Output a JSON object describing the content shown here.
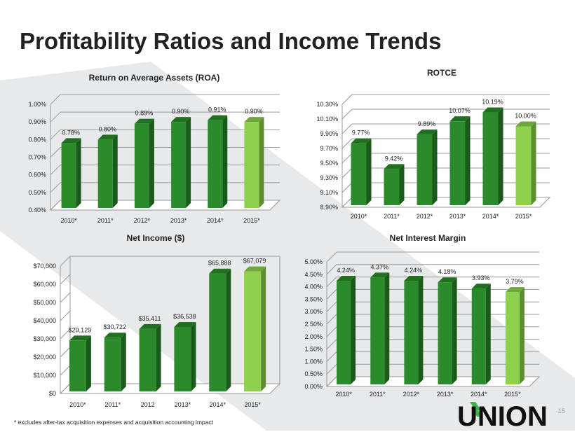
{
  "page": {
    "title": "Profitability Ratios and Income Trends",
    "footnote": "* excludes after-tax acquisition expenses and acquisition accounting impact",
    "page_number": "15",
    "logo_text": "UNION"
  },
  "colors": {
    "bar": "#2b8a2b",
    "bar_side": "#1a5a1a",
    "bar_top": "#207020",
    "highlight": "#8fd14f",
    "highlight_side": "#5e8f2f",
    "highlight_top": "#6fa83a",
    "grid": "#999999",
    "band": "#e8e9eb"
  },
  "chart_data": [
    {
      "type": "bar",
      "title": "Return on Average Assets (ROA)",
      "categories": [
        "2010*",
        "2011*",
        "2012*",
        "2013*",
        "2014*",
        "2015*"
      ],
      "values": [
        0.78,
        0.8,
        0.89,
        0.9,
        0.91,
        0.9
      ],
      "labels": [
        "0.78%",
        "0.80%",
        "0.89%",
        "0.90%",
        "0.91%",
        "0.90%"
      ],
      "yticks": [
        "0.40%",
        "0.50%",
        "0.60%",
        "0.70%",
        "0.80%",
        "0.90%",
        "1.00%"
      ],
      "ylim": [
        0.4,
        1.0
      ],
      "grid": true,
      "highlight_index": 5
    },
    {
      "type": "bar",
      "title": "ROTCE",
      "categories": [
        "2010*",
        "2011*",
        "2012*",
        "2013*",
        "2014*",
        "2015*"
      ],
      "values": [
        9.77,
        9.42,
        9.89,
        10.07,
        10.19,
        10.0
      ],
      "labels": [
        "9.77%",
        "9.42%",
        "9.89%",
        "10.07%",
        "10.19%",
        "10.00%"
      ],
      "yticks": [
        "8.90%",
        "9.10%",
        "9.30%",
        "9.50%",
        "9.70%",
        "9.90%",
        "10.10%",
        "10.30%"
      ],
      "ylim": [
        8.9,
        10.3
      ],
      "grid": true,
      "highlight_index": 5
    },
    {
      "type": "bar",
      "title": "Net Income ($)",
      "categories": [
        "2010*",
        "2011*",
        "2012",
        "2013*",
        "2014*",
        "2015*"
      ],
      "values": [
        29129,
        30722,
        35411,
        36538,
        65888,
        67079
      ],
      "labels": [
        "$29,129",
        "$30,722",
        "$35,411",
        "$36,538",
        "$65,888",
        "$67,079"
      ],
      "yticks": [
        "$0",
        "$10,000",
        "$20,000",
        "$30,000",
        "$40,000",
        "$50,000",
        "$60,000",
        "$70,000"
      ],
      "ylim": [
        0,
        70000
      ],
      "grid": false,
      "highlight_index": 5
    },
    {
      "type": "bar",
      "title": "Net Interest Margin",
      "categories": [
        "2010*",
        "2011*",
        "2012*",
        "2013*",
        "2014*",
        "2015*"
      ],
      "values": [
        4.24,
        4.37,
        4.24,
        4.18,
        3.93,
        3.79
      ],
      "labels": [
        "4.24%",
        "4.37%",
        "4.24%",
        "4.18%",
        "3.93%",
        "3.79%"
      ],
      "yticks": [
        "0.00%",
        "0.50%",
        "1.00%",
        "1.50%",
        "2.00%",
        "2.50%",
        "3.00%",
        "3.50%",
        "4.00%",
        "4.50%",
        "5.00%"
      ],
      "ylim": [
        0,
        5
      ],
      "grid": true,
      "highlight_index": 5
    }
  ]
}
